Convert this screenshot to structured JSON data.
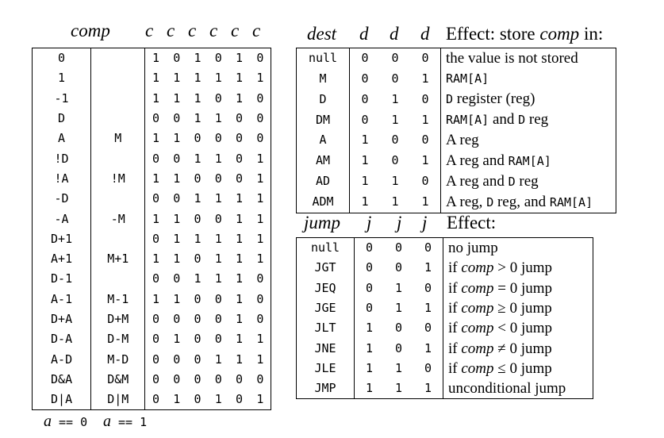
{
  "comp_header": {
    "comp": "comp",
    "c": "c"
  },
  "comp_rows": [
    {
      "a0": "0",
      "a1": "",
      "bits": [
        "1",
        "0",
        "1",
        "0",
        "1",
        "0"
      ]
    },
    {
      "a0": "1",
      "a1": "",
      "bits": [
        "1",
        "1",
        "1",
        "1",
        "1",
        "1"
      ]
    },
    {
      "a0": "-1",
      "a1": "",
      "bits": [
        "1",
        "1",
        "1",
        "0",
        "1",
        "0"
      ]
    },
    {
      "a0": "D",
      "a1": "",
      "bits": [
        "0",
        "0",
        "1",
        "1",
        "0",
        "0"
      ]
    },
    {
      "a0": "A",
      "a1": "M",
      "bits": [
        "1",
        "1",
        "0",
        "0",
        "0",
        "0"
      ]
    },
    {
      "a0": "!D",
      "a1": "",
      "bits": [
        "0",
        "0",
        "1",
        "1",
        "0",
        "1"
      ]
    },
    {
      "a0": "!A",
      "a1": "!M",
      "bits": [
        "1",
        "1",
        "0",
        "0",
        "0",
        "1"
      ]
    },
    {
      "a0": "-D",
      "a1": "",
      "bits": [
        "0",
        "0",
        "1",
        "1",
        "1",
        "1"
      ]
    },
    {
      "a0": "-A",
      "a1": "-M",
      "bits": [
        "1",
        "1",
        "0",
        "0",
        "1",
        "1"
      ]
    },
    {
      "a0": "D+1",
      "a1": "",
      "bits": [
        "0",
        "1",
        "1",
        "1",
        "1",
        "1"
      ]
    },
    {
      "a0": "A+1",
      "a1": "M+1",
      "bits": [
        "1",
        "1",
        "0",
        "1",
        "1",
        "1"
      ]
    },
    {
      "a0": "D-1",
      "a1": "",
      "bits": [
        "0",
        "0",
        "1",
        "1",
        "1",
        "0"
      ]
    },
    {
      "a0": "A-1",
      "a1": "M-1",
      "bits": [
        "1",
        "1",
        "0",
        "0",
        "1",
        "0"
      ]
    },
    {
      "a0": "D+A",
      "a1": "D+M",
      "bits": [
        "0",
        "0",
        "0",
        "0",
        "1",
        "0"
      ]
    },
    {
      "a0": "D-A",
      "a1": "D-M",
      "bits": [
        "0",
        "1",
        "0",
        "0",
        "1",
        "1"
      ]
    },
    {
      "a0": "A-D",
      "a1": "M-D",
      "bits": [
        "0",
        "0",
        "0",
        "1",
        "1",
        "1"
      ]
    },
    {
      "a0": "D&A",
      "a1": "D&M",
      "bits": [
        "0",
        "0",
        "0",
        "0",
        "0",
        "0"
      ]
    },
    {
      "a0": "D|A",
      "a1": "D|M",
      "bits": [
        "0",
        "1",
        "0",
        "1",
        "0",
        "1"
      ]
    }
  ],
  "comp_footer": {
    "a": "a",
    "eq0": " == 0",
    "eq1": " == 1"
  },
  "dest_header": {
    "dest": "dest",
    "d": "d",
    "effect_pre": "Effect: store ",
    "effect_comp": "comp",
    "effect_post": " in:"
  },
  "dest_rows": [
    {
      "mn": "null",
      "bits": [
        "0",
        "0",
        "0"
      ],
      "effect": "the value is not stored"
    },
    {
      "mn": "M",
      "bits": [
        "0",
        "0",
        "1"
      ],
      "effect": "RAM[A]"
    },
    {
      "mn": "D",
      "bits": [
        "0",
        "1",
        "0"
      ],
      "effect": "D register (reg)"
    },
    {
      "mn": "DM",
      "bits": [
        "0",
        "1",
        "1"
      ],
      "effect": "RAM[A] and D reg"
    },
    {
      "mn": "A",
      "bits": [
        "1",
        "0",
        "0"
      ],
      "effect": "A reg"
    },
    {
      "mn": "AM",
      "bits": [
        "1",
        "0",
        "1"
      ],
      "effect": "A reg and RAM[A]"
    },
    {
      "mn": "AD",
      "bits": [
        "1",
        "1",
        "0"
      ],
      "effect": "A reg and D reg"
    },
    {
      "mn": "ADM",
      "bits": [
        "1",
        "1",
        "1"
      ],
      "effect": "A reg, D reg, and RAM[A]"
    }
  ],
  "jump_header": {
    "jump": "jump",
    "j": "j",
    "effect": "Effect:"
  },
  "jump_rows": [
    {
      "mn": "null",
      "bits": [
        "0",
        "0",
        "0"
      ],
      "effect": "no jump"
    },
    {
      "mn": "JGT",
      "bits": [
        "0",
        "0",
        "1"
      ],
      "effect": "if comp > 0 jump"
    },
    {
      "mn": "JEQ",
      "bits": [
        "0",
        "1",
        "0"
      ],
      "effect": "if comp = 0 jump"
    },
    {
      "mn": "JGE",
      "bits": [
        "0",
        "1",
        "1"
      ],
      "effect": "if comp ≥ 0 jump"
    },
    {
      "mn": "JLT",
      "bits": [
        "1",
        "0",
        "0"
      ],
      "effect": "if comp < 0 jump"
    },
    {
      "mn": "JNE",
      "bits": [
        "1",
        "0",
        "1"
      ],
      "effect": "if comp ≠ 0 jump"
    },
    {
      "mn": "JLE",
      "bits": [
        "1",
        "1",
        "0"
      ],
      "effect": "if comp ≤ 0 jump"
    },
    {
      "mn": "JMP",
      "bits": [
        "1",
        "1",
        "1"
      ],
      "effect": "unconditional jump"
    }
  ]
}
